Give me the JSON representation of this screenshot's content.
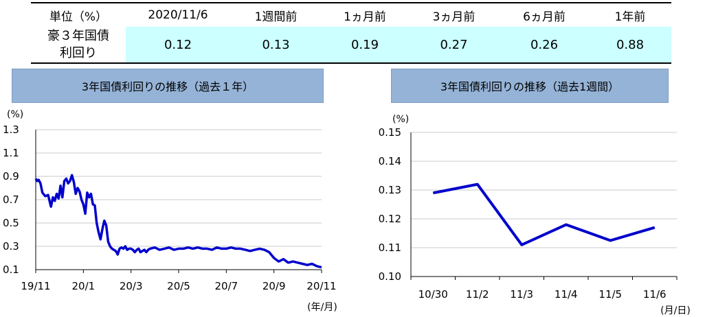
{
  "table": {
    "unit_label": "単位（%）",
    "columns": [
      "2020/11/6",
      "1週間前",
      "1ヵ月前",
      "3ヵ月前",
      "6ヵ月前",
      "1年前"
    ],
    "row_label_line1": "豪３年国債",
    "row_label_line2": "利回り",
    "values": [
      "0.12",
      "0.13",
      "0.19",
      "0.27",
      "0.26",
      "0.88"
    ],
    "highlight_color": "#ccffff"
  },
  "chart_data": [
    {
      "type": "line",
      "title": "3年国債利回りの推移（過去１年）",
      "ylabel": "(%)",
      "xlabel": "(年/月)",
      "ylim": [
        0.1,
        1.3
      ],
      "yticks": [
        "1.3",
        "1.1",
        "0.9",
        "0.7",
        "0.5",
        "0.3",
        "0.1"
      ],
      "xticks": [
        "19/11",
        "20/1",
        "20/3",
        "20/5",
        "20/7",
        "20/9",
        "20/11"
      ],
      "grid": true,
      "line_color": "#0000cc",
      "series": [
        {
          "x": [
            0,
            0.03,
            0.06,
            0.1,
            0.14,
            0.2,
            0.26,
            0.32,
            0.36,
            0.4,
            0.44,
            0.48,
            0.52,
            0.56,
            0.6,
            0.64,
            0.68,
            0.72,
            0.76,
            0.8,
            0.84,
            0.88,
            0.92,
            0.96,
            1.0,
            1.04,
            1.08,
            1.12,
            1.16,
            1.2,
            1.24,
            1.28,
            1.32,
            1.36,
            1.4,
            1.44,
            1.48,
            1.52,
            1.56,
            1.6,
            1.64,
            1.68,
            1.72,
            1.76,
            1.8,
            1.84,
            1.88,
            1.92,
            1.96,
            2.0,
            2.04,
            2.08,
            2.12,
            2.16,
            2.2,
            2.24,
            2.28,
            2.32,
            2.36,
            2.4,
            2.5,
            2.6,
            2.7,
            2.8,
            2.9,
            3.0,
            3.1,
            3.2,
            3.3,
            3.4,
            3.5,
            3.6,
            3.7,
            3.8,
            3.9,
            4.0,
            4.1,
            4.2,
            4.3,
            4.4,
            4.5,
            4.6,
            4.7,
            4.8,
            4.9,
            5.0,
            5.1,
            5.2,
            5.3,
            5.4,
            5.5,
            5.6,
            5.7,
            5.8,
            5.9,
            6.0
          ],
          "values": [
            0.88,
            0.86,
            0.87,
            0.84,
            0.76,
            0.73,
            0.74,
            0.64,
            0.72,
            0.69,
            0.75,
            0.71,
            0.82,
            0.72,
            0.86,
            0.88,
            0.84,
            0.86,
            0.91,
            0.85,
            0.75,
            0.8,
            0.77,
            0.7,
            0.66,
            0.58,
            0.76,
            0.72,
            0.75,
            0.66,
            0.65,
            0.5,
            0.42,
            0.36,
            0.45,
            0.52,
            0.48,
            0.34,
            0.3,
            0.28,
            0.27,
            0.26,
            0.23,
            0.28,
            0.29,
            0.28,
            0.3,
            0.27,
            0.28,
            0.28,
            0.27,
            0.25,
            0.27,
            0.28,
            0.25,
            0.26,
            0.27,
            0.25,
            0.27,
            0.28,
            0.29,
            0.27,
            0.28,
            0.29,
            0.27,
            0.28,
            0.28,
            0.29,
            0.28,
            0.29,
            0.28,
            0.28,
            0.27,
            0.29,
            0.28,
            0.28,
            0.29,
            0.28,
            0.28,
            0.27,
            0.26,
            0.27,
            0.28,
            0.27,
            0.25,
            0.2,
            0.17,
            0.19,
            0.16,
            0.17,
            0.16,
            0.15,
            0.14,
            0.15,
            0.13,
            0.12
          ]
        }
      ]
    },
    {
      "type": "line",
      "title": "3年国債利回りの推移（過去1週間）",
      "ylabel": "(%)",
      "xlabel": "(月/日)",
      "ylim": [
        0.1,
        0.15
      ],
      "yticks": [
        "0.15",
        "0.14",
        "0.13",
        "0.12",
        "0.11",
        "0.10"
      ],
      "categories": [
        "10/30",
        "11/2",
        "11/3",
        "11/4",
        "11/5",
        "11/6"
      ],
      "grid": true,
      "line_color": "#0000cc",
      "series": [
        {
          "values": [
            0.129,
            0.132,
            0.111,
            0.118,
            0.1125,
            0.117
          ]
        }
      ]
    }
  ]
}
